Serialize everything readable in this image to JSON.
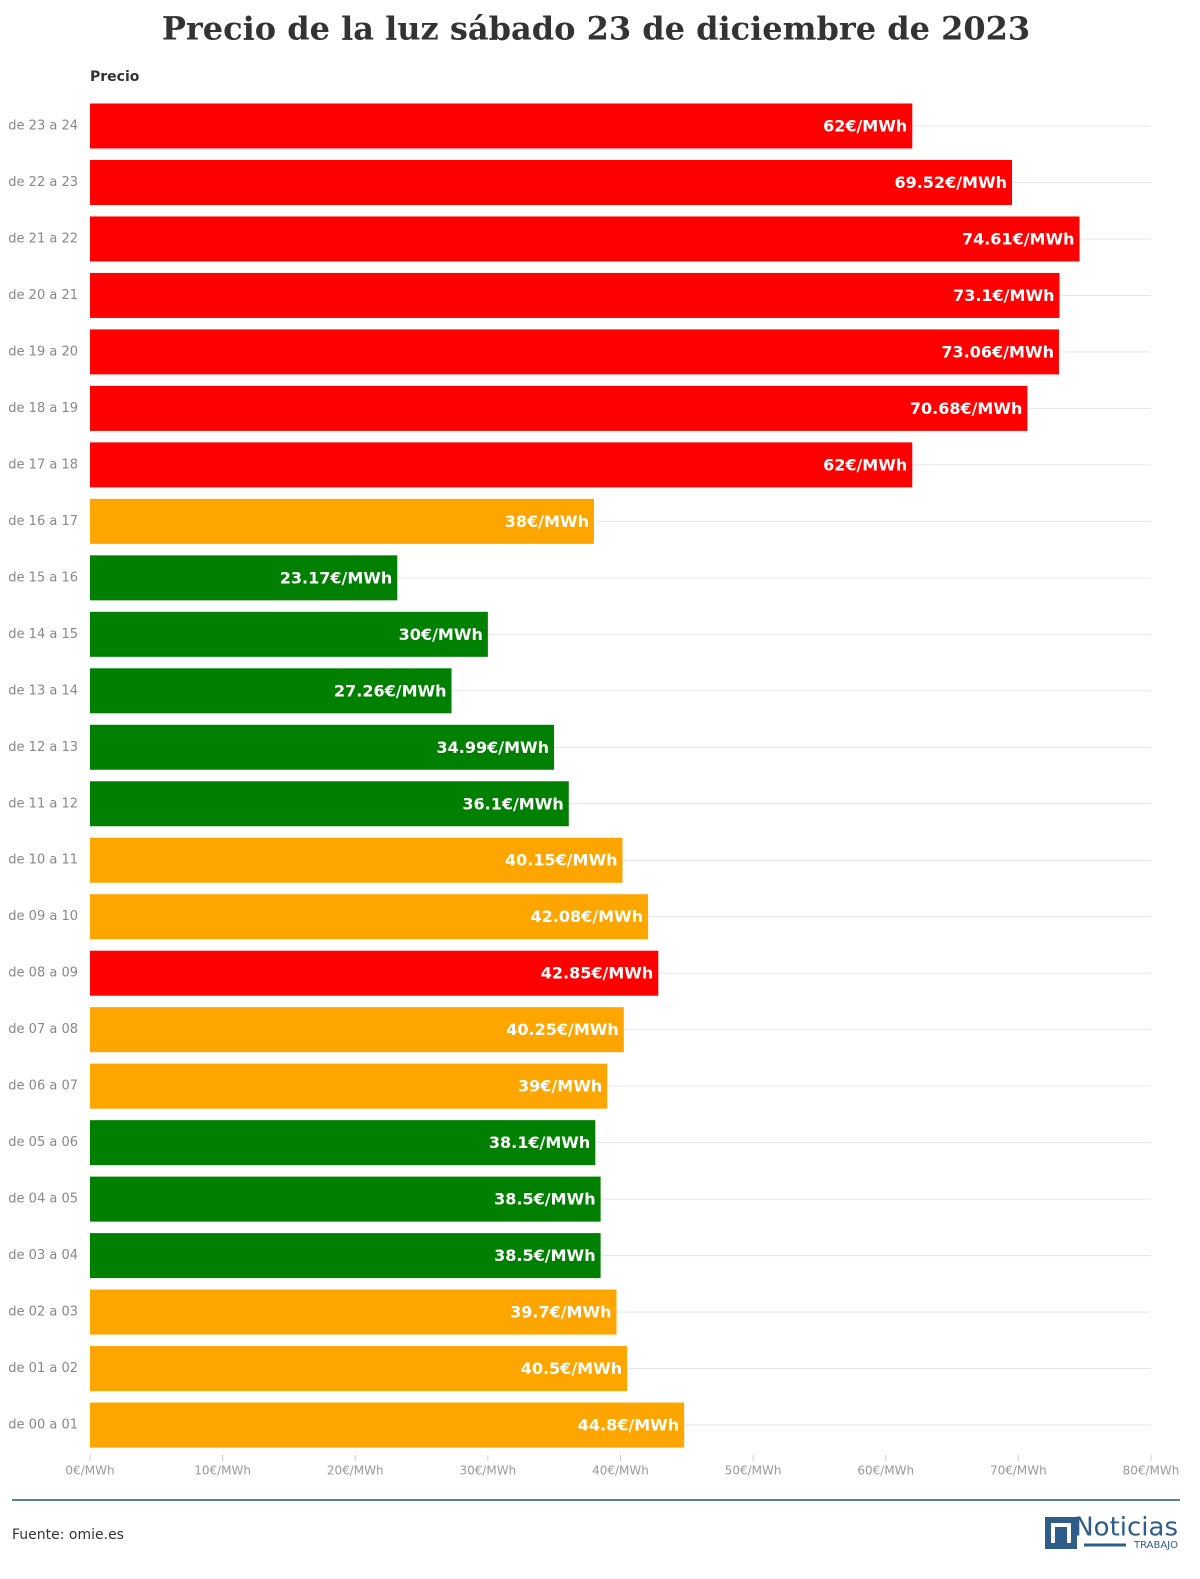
{
  "chart_data": {
    "type": "bar",
    "orientation": "horizontal",
    "title": "Precio de la luz sábado 23 de diciembre de 2023",
    "y_label": "Precio",
    "categories": [
      "de 23 a 24",
      "de 22 a 23",
      "de 21 a 22",
      "de 20 a 21",
      "de 19 a 20",
      "de 18 a 19",
      "de 17 a 18",
      "de 16 a 17",
      "de 15 a 16",
      "de 14 a 15",
      "de 13 a 14",
      "de 12 a 13",
      "de 11 a 12",
      "de 10 a 11",
      "de 09 a 10",
      "de 08 a 09",
      "de 07 a 08",
      "de 06 a 07",
      "de 05 a 06",
      "de 04 a 05",
      "de 03 a 04",
      "de 02 a 03",
      "de 01 a 02",
      "de 00 a 01"
    ],
    "values": [
      62,
      69.52,
      74.61,
      73.1,
      73.06,
      70.68,
      62,
      38,
      23.17,
      30,
      27.26,
      34.99,
      36.1,
      40.15,
      42.08,
      42.85,
      40.25,
      39,
      38.1,
      38.5,
      38.5,
      39.7,
      40.5,
      44.8
    ],
    "value_labels": [
      "62€/MWh",
      "69.52€/MWh",
      "74.61€/MWh",
      "73.1€/MWh",
      "73.06€/MWh",
      "70.68€/MWh",
      "62€/MWh",
      "38€/MWh",
      "23.17€/MWh",
      "30€/MWh",
      "27.26€/MWh",
      "34.99€/MWh",
      "36.1€/MWh",
      "40.15€/MWh",
      "42.08€/MWh",
      "42.85€/MWh",
      "40.25€/MWh",
      "39€/MWh",
      "38.1€/MWh",
      "38.5€/MWh",
      "38.5€/MWh",
      "39.7€/MWh",
      "40.5€/MWh",
      "44.8€/MWh"
    ],
    "colors": [
      "#ff0000",
      "#ff0000",
      "#ff0000",
      "#ff0000",
      "#ff0000",
      "#ff0000",
      "#ff0000",
      "#ffa500",
      "#008000",
      "#008000",
      "#008000",
      "#008000",
      "#008000",
      "#ffa500",
      "#ffa500",
      "#ff0000",
      "#ffa500",
      "#ffa500",
      "#008000",
      "#008000",
      "#008000",
      "#ffa500",
      "#ffa500",
      "#ffa500"
    ],
    "xlim": [
      0,
      80
    ],
    "xticks": [
      {
        "value": 0,
        "label": "0€/MWh"
      },
      {
        "value": 10,
        "label": "10€/MWh"
      },
      {
        "value": 20,
        "label": "20€/MWh"
      },
      {
        "value": 30,
        "label": "30€/MWh"
      },
      {
        "value": 40,
        "label": "40€/MWh"
      },
      {
        "value": 50,
        "label": "50€/MWh"
      },
      {
        "value": 60,
        "label": "60€/MWh"
      },
      {
        "value": 70,
        "label": "70€/MWh"
      },
      {
        "value": 80,
        "label": "80€/MWh"
      }
    ],
    "source": "Fuente: omie.es",
    "logo": {
      "name": "Noticias",
      "sub": "TRABAJO"
    }
  }
}
